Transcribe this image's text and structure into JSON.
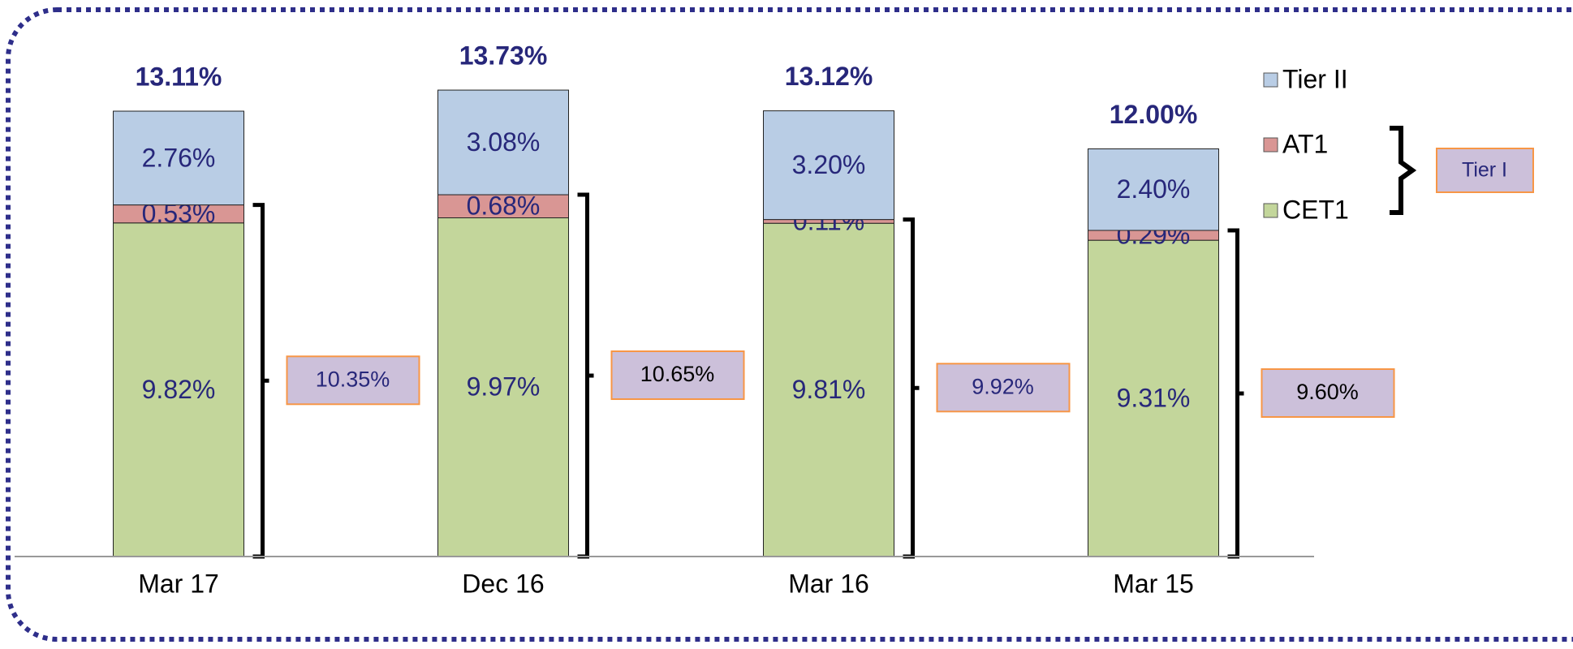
{
  "chart_data": {
    "type": "stacked-bar",
    "categories": [
      "Mar 17",
      "Dec 16",
      "Mar 16",
      "Mar 15"
    ],
    "series": [
      {
        "name": "CET1",
        "color": "#c3d69b",
        "values": [
          9.82,
          9.97,
          9.81,
          9.31
        ],
        "value_labels": [
          "9.82%",
          "9.97%",
          "9.81%",
          "9.31%"
        ]
      },
      {
        "name": "AT1",
        "color": "#d99694",
        "values": [
          0.53,
          0.68,
          0.11,
          0.29
        ],
        "value_labels": [
          "0.53%",
          "0.68%",
          "0.11%",
          "0.29%"
        ]
      },
      {
        "name": "Tier II",
        "color": "#b9cde5",
        "values": [
          2.76,
          3.08,
          3.2,
          2.4
        ],
        "value_labels": [
          "2.76%",
          "3.08%",
          "3.20%",
          "2.40%"
        ]
      }
    ],
    "totals": {
      "values": [
        13.11,
        13.73,
        13.12,
        12.0
      ],
      "value_labels": [
        "13.11%",
        "13.73%",
        "13.12%",
        "12.00%"
      ]
    },
    "tier1": {
      "name": "Tier I",
      "values": [
        10.35,
        10.65,
        9.92,
        9.6
      ],
      "value_labels": [
        "10.35%",
        "10.65%",
        "9.92%",
        "9.60%"
      ]
    },
    "ylim": [
      0,
      16
    ],
    "legend": "top-right"
  }
}
